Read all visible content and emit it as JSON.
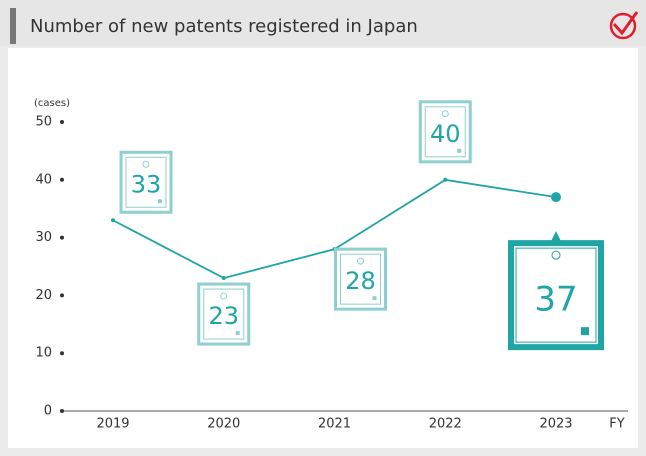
{
  "chart_data": {
    "type": "line",
    "title": "Number of new patents registered in Japan",
    "y_unit": "(cases)",
    "x_label": "FY",
    "categories": [
      "2019",
      "2020",
      "2021",
      "2022",
      "2023"
    ],
    "values": [
      33,
      23,
      28,
      40,
      37
    ],
    "color": "#1fa5a5",
    "ylim": [
      0,
      50
    ],
    "yticks": [
      0,
      10,
      20,
      30,
      40,
      50
    ]
  }
}
